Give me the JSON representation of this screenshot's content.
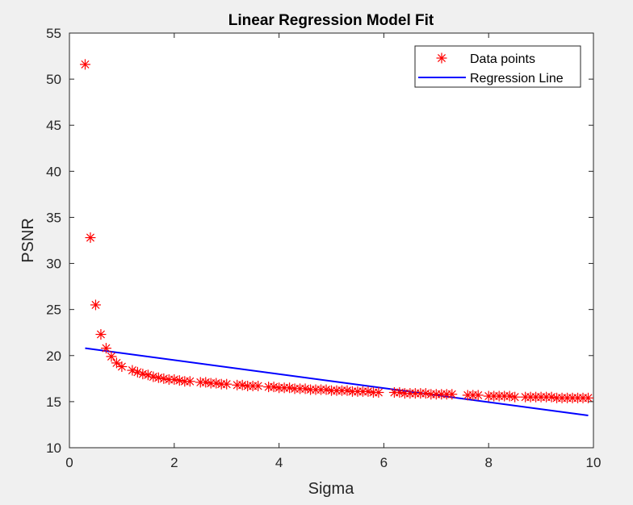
{
  "chart_data": {
    "type": "scatter",
    "title": "Linear Regression Model Fit",
    "xlabel": "Sigma",
    "ylabel": "PSNR",
    "xlim": [
      0,
      10
    ],
    "ylim": [
      10,
      55
    ],
    "xticks": [
      0,
      2,
      4,
      6,
      8,
      10
    ],
    "yticks": [
      10,
      15,
      20,
      25,
      30,
      35,
      40,
      45,
      50,
      55
    ],
    "grid": false,
    "legend_placement": "top-right",
    "series": [
      {
        "name": "Data points",
        "kind": "scatter",
        "marker": "asterisk",
        "color": "#ff0000",
        "x": [
          0.3,
          0.4,
          0.5,
          0.6,
          0.7,
          0.8,
          0.9,
          1.0,
          1.2,
          1.3,
          1.4,
          1.5,
          1.6,
          1.7,
          1.8,
          1.9,
          2.0,
          2.1,
          2.2,
          2.3,
          2.5,
          2.6,
          2.7,
          2.8,
          2.9,
          3.0,
          3.2,
          3.3,
          3.4,
          3.5,
          3.6,
          3.8,
          3.9,
          4.0,
          4.1,
          4.2,
          4.3,
          4.4,
          4.5,
          4.6,
          4.7,
          4.8,
          4.9,
          5.0,
          5.1,
          5.2,
          5.3,
          5.4,
          5.5,
          5.6,
          5.7,
          5.8,
          5.9,
          6.2,
          6.3,
          6.4,
          6.5,
          6.6,
          6.7,
          6.8,
          6.9,
          7.0,
          7.1,
          7.2,
          7.3,
          7.6,
          7.7,
          7.8,
          8.0,
          8.1,
          8.2,
          8.3,
          8.4,
          8.5,
          8.7,
          8.8,
          8.9,
          9.0,
          9.1,
          9.2,
          9.3,
          9.4,
          9.5,
          9.6,
          9.7,
          9.8,
          9.9
        ],
        "y": [
          51.6,
          32.8,
          25.5,
          22.3,
          20.8,
          19.9,
          19.2,
          18.8,
          18.4,
          18.2,
          18.0,
          17.9,
          17.7,
          17.6,
          17.5,
          17.4,
          17.4,
          17.3,
          17.2,
          17.2,
          17.1,
          17.1,
          17.0,
          17.0,
          16.9,
          16.9,
          16.8,
          16.8,
          16.7,
          16.7,
          16.7,
          16.6,
          16.6,
          16.5,
          16.5,
          16.5,
          16.4,
          16.4,
          16.4,
          16.3,
          16.3,
          16.3,
          16.3,
          16.2,
          16.2,
          16.2,
          16.2,
          16.1,
          16.1,
          16.1,
          16.1,
          16.0,
          16.0,
          16.0,
          16.0,
          15.9,
          15.9,
          15.9,
          15.9,
          15.9,
          15.8,
          15.8,
          15.8,
          15.8,
          15.8,
          15.7,
          15.7,
          15.7,
          15.6,
          15.6,
          15.6,
          15.6,
          15.6,
          15.5,
          15.5,
          15.5,
          15.5,
          15.5,
          15.5,
          15.5,
          15.4,
          15.4,
          15.4,
          15.4,
          15.4,
          15.4,
          15.4
        ]
      },
      {
        "name": "Regression Line",
        "kind": "line",
        "color": "#0000ff",
        "x": [
          0.3,
          9.9
        ],
        "y": [
          20.8,
          13.5
        ]
      }
    ]
  }
}
